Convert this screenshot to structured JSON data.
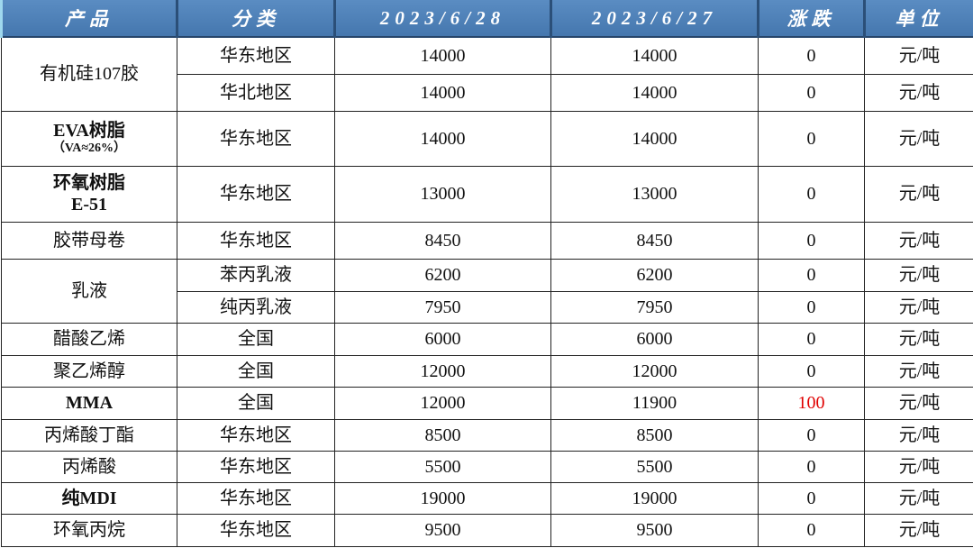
{
  "headers": [
    "产品",
    "分类",
    "2023/6/28",
    "2023/6/27",
    "涨跌",
    "单位"
  ],
  "colors": {
    "header_bg": "#4a7eb5",
    "up": "#e00000"
  },
  "rows": [
    {
      "product": "有机硅107胶",
      "region": "华东地区",
      "d1": "14000",
      "d2": "14000",
      "change": "0",
      "unit": "元/吨"
    },
    {
      "region": "华北地区",
      "d1": "14000",
      "d2": "14000",
      "change": "0",
      "unit": "元/吨"
    },
    {
      "product": "EVA树脂",
      "product_sub": "（VA≈26%）",
      "region": "华东地区",
      "d1": "14000",
      "d2": "14000",
      "change": "0",
      "unit": "元/吨"
    },
    {
      "product": "环氧树脂",
      "product_sub": "E-51",
      "region": "华东地区",
      "d1": "13000",
      "d2": "13000",
      "change": "0",
      "unit": "元/吨"
    },
    {
      "product": "胶带母卷",
      "region": "华东地区",
      "d1": "8450",
      "d2": "8450",
      "change": "0",
      "unit": "元/吨"
    },
    {
      "product": "乳液",
      "region": "苯丙乳液",
      "d1": "6200",
      "d2": "6200",
      "change": "0",
      "unit": "元/吨"
    },
    {
      "region": "纯丙乳液",
      "d1": "7950",
      "d2": "7950",
      "change": "0",
      "unit": "元/吨"
    },
    {
      "product": "醋酸乙烯",
      "region": "全国",
      "d1": "6000",
      "d2": "6000",
      "change": "0",
      "unit": "元/吨"
    },
    {
      "product": "聚乙烯醇",
      "region": "全国",
      "d1": "12000",
      "d2": "12000",
      "change": "0",
      "unit": "元/吨"
    },
    {
      "product": "MMA",
      "region": "全国",
      "d1": "12000",
      "d2": "11900",
      "change": "100",
      "unit": "元/吨"
    },
    {
      "product": "丙烯酸丁酯",
      "region": "华东地区",
      "d1": "8500",
      "d2": "8500",
      "change": "0",
      "unit": "元/吨"
    },
    {
      "product": "丙烯酸",
      "region": "华东地区",
      "d1": "5500",
      "d2": "5500",
      "change": "0",
      "unit": "元/吨"
    },
    {
      "product": "纯MDI",
      "region": "华东地区",
      "d1": "19000",
      "d2": "19000",
      "change": "0",
      "unit": "元/吨"
    },
    {
      "product": "环氧丙烷",
      "region": "华东地区",
      "d1": "9500",
      "d2": "9500",
      "change": "0",
      "unit": "元/吨"
    }
  ]
}
